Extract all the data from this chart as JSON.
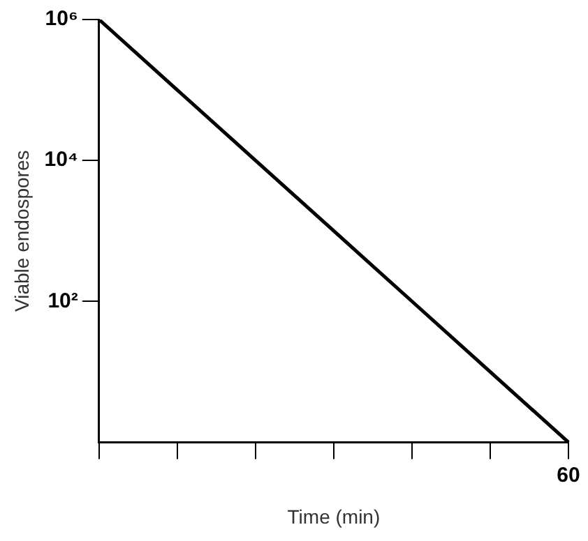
{
  "chart_data": {
    "type": "line",
    "xlabel": "Time (min)",
    "ylabel": "Viable endospores",
    "categories": [
      null,
      null,
      null,
      null,
      null,
      null,
      "60"
    ],
    "series": [
      {
        "color": "#000000",
        "values": [
          1000000,
          100000,
          10000,
          1000,
          100,
          10,
          1
        ]
      }
    ],
    "ylim": [
      1,
      1000000
    ],
    "yticks": [
      {
        "value": 100,
        "label": "10²"
      },
      {
        "value": 10000,
        "label": "10⁴"
      },
      {
        "value": 1000000,
        "label": "10⁶"
      }
    ],
    "log": "y",
    "grid": false,
    "marker": "none",
    "line_style": "solid"
  }
}
